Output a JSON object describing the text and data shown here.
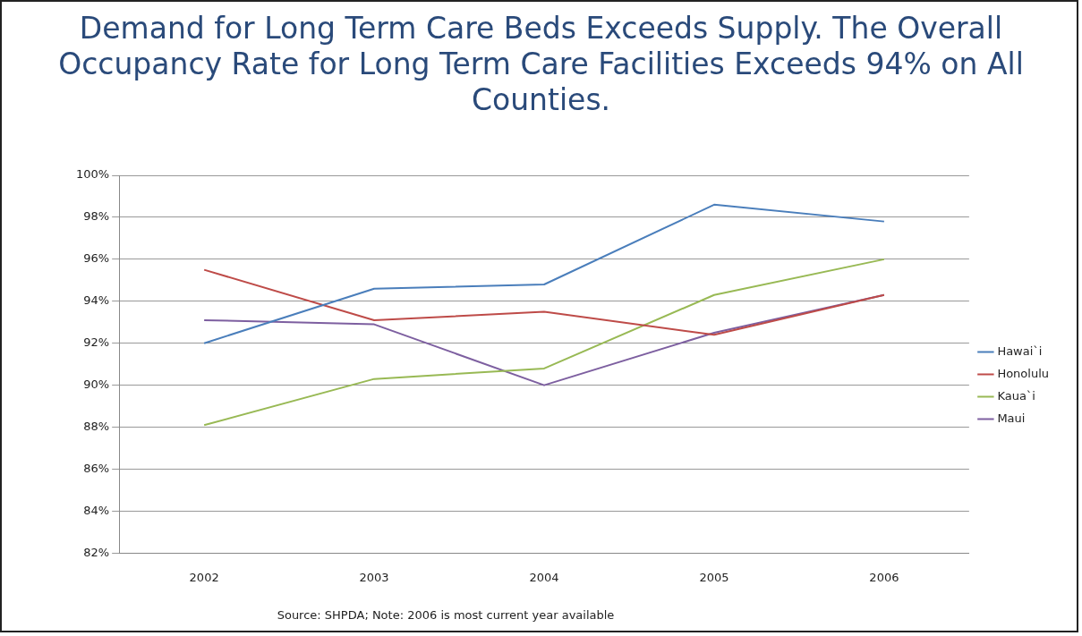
{
  "chart_data": {
    "type": "line",
    "title": "Demand for Long Term Care Beds Exceeds Supply. The Overall Occupancy Rate for Long Term Care Facilities Exceeds 94% on All Counties.",
    "categories": [
      "2002",
      "2003",
      "2004",
      "2005",
      "2006"
    ],
    "series": [
      {
        "name": "Hawai`i",
        "color": "#4a7ebb",
        "values": [
          92.0,
          94.6,
          94.8,
          98.6,
          97.8
        ]
      },
      {
        "name": "Honolulu",
        "color": "#be4b48",
        "values": [
          95.5,
          93.1,
          93.5,
          92.4,
          94.3
        ]
      },
      {
        "name": "Kaua`i",
        "color": "#98b954",
        "values": [
          88.1,
          90.3,
          90.8,
          94.3,
          96.0
        ]
      },
      {
        "name": "Maui",
        "color": "#7d5fa0",
        "values": [
          93.1,
          92.9,
          90.0,
          92.5,
          94.3
        ]
      }
    ],
    "ylim": [
      82,
      100
    ],
    "yticks": [
      {
        "value": 82,
        "label": "82%"
      },
      {
        "value": 84,
        "label": "84%"
      },
      {
        "value": 86,
        "label": "86%"
      },
      {
        "value": 88,
        "label": "88%"
      },
      {
        "value": 90,
        "label": "90%"
      },
      {
        "value": 92,
        "label": "92%"
      },
      {
        "value": 94,
        "label": "94%"
      },
      {
        "value": 96,
        "label": "96%"
      },
      {
        "value": 98,
        "label": "98%"
      },
      {
        "value": 100,
        "label": "100%"
      }
    ],
    "grid": "y",
    "legend": "right",
    "marker": "none",
    "line_style": "solid",
    "annotations": [
      "Source: SHPDA; Note: 2006 is most current year available"
    ]
  }
}
